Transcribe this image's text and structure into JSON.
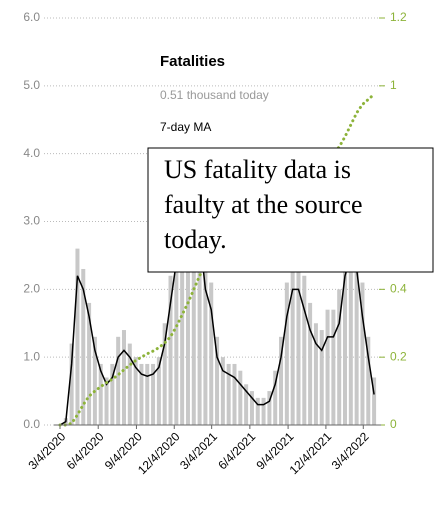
{
  "chart_data": {
    "type": "bar-line",
    "legend_title": "Fatalities",
    "legend_subtitle": "0.51 thousand today",
    "legend_line": "7-day MA",
    "annotation": [
      "US fatality data is",
      "faulty at the source",
      "today."
    ],
    "x": [
      "3/4/2020",
      "3/18/2020",
      "4/1/2020",
      "4/15/2020",
      "4/29/2020",
      "5/13/2020",
      "5/27/2020",
      "6/10/2020",
      "6/24/2020",
      "7/8/2020",
      "7/22/2020",
      "8/5/2020",
      "8/19/2020",
      "9/2/2020",
      "9/16/2020",
      "9/30/2020",
      "10/14/2020",
      "10/28/2020",
      "11/11/2020",
      "11/25/2020",
      "12/9/2020",
      "12/23/2020",
      "1/6/2021",
      "1/20/2021",
      "2/3/2021",
      "2/17/2021",
      "3/3/2021",
      "3/17/2021",
      "3/31/2021",
      "4/14/2021",
      "4/28/2021",
      "5/12/2021",
      "5/26/2021",
      "6/9/2021",
      "6/23/2021",
      "7/7/2021",
      "7/21/2021",
      "8/4/2021",
      "8/18/2021",
      "9/1/2021",
      "9/15/2021",
      "9/29/2021",
      "10/13/2021",
      "10/27/2021",
      "11/10/2021",
      "11/24/2021",
      "12/8/2021",
      "12/22/2021",
      "1/5/2022",
      "1/19/2022",
      "2/2/2022",
      "2/16/2022",
      "3/2/2022",
      "3/16/2022",
      "3/30/2022"
    ],
    "series": [
      {
        "name": "Fatalities",
        "color": "#c8c8c8",
        "kind": "bar",
        "values": [
          0,
          0.1,
          1.2,
          2.6,
          2.3,
          1.8,
          1.3,
          0.9,
          0.7,
          0.9,
          1.3,
          1.4,
          1.2,
          1.0,
          0.9,
          0.9,
          0.9,
          1.0,
          1.5,
          2.2,
          2.9,
          3.3,
          3.8,
          3.9,
          3.4,
          2.6,
          2.1,
          1.3,
          1.0,
          0.9,
          0.9,
          0.8,
          0.6,
          0.5,
          0.4,
          0.4,
          0.5,
          0.8,
          1.3,
          2.1,
          2.7,
          2.6,
          2.2,
          1.8,
          1.5,
          1.4,
          1.7,
          1.7,
          2.0,
          2.8,
          3.3,
          3.0,
          2.1,
          1.3,
          0.7
        ]
      },
      {
        "name": "7-day MA",
        "color": "#000000",
        "kind": "line",
        "values": [
          0,
          0.05,
          0.9,
          2.2,
          2.0,
          1.6,
          1.1,
          0.8,
          0.6,
          0.7,
          1.0,
          1.1,
          1.0,
          0.85,
          0.75,
          0.72,
          0.75,
          0.85,
          1.2,
          1.8,
          2.4,
          2.7,
          3.0,
          3.1,
          2.8,
          2.0,
          1.7,
          1.0,
          0.8,
          0.75,
          0.7,
          0.6,
          0.5,
          0.4,
          0.3,
          0.3,
          0.35,
          0.6,
          1.0,
          1.6,
          2.0,
          2.0,
          1.7,
          1.4,
          1.2,
          1.1,
          1.3,
          1.3,
          1.5,
          2.2,
          2.5,
          2.3,
          1.6,
          1.0,
          0.45
        ]
      },
      {
        "name": "Cumulative",
        "color": "#8db33a",
        "kind": "dotted",
        "axis": "y2",
        "values": [
          0,
          0,
          0.005,
          0.03,
          0.06,
          0.085,
          0.1,
          0.113,
          0.125,
          0.135,
          0.148,
          0.163,
          0.177,
          0.19,
          0.2,
          0.21,
          0.218,
          0.228,
          0.242,
          0.26,
          0.29,
          0.325,
          0.36,
          0.4,
          0.44,
          0.47,
          0.5,
          0.52,
          0.54,
          0.555,
          0.57,
          0.58,
          0.59,
          0.597,
          0.602,
          0.606,
          0.61,
          0.615,
          0.625,
          0.64,
          0.665,
          0.69,
          0.72,
          0.74,
          0.755,
          0.77,
          0.785,
          0.8,
          0.82,
          0.85,
          0.885,
          0.92,
          0.945,
          0.96,
          0.975
        ]
      }
    ],
    "xlim": [
      "3/4/2020",
      "4/6/2022"
    ],
    "xticks": [
      "3/4/2020",
      "6/4/2020",
      "9/4/2020",
      "12/4/2020",
      "3/4/2021",
      "6/4/2021",
      "9/4/2021",
      "12/4/2021",
      "3/4/2022"
    ],
    "ylim": [
      0,
      6
    ],
    "yticks": [
      {
        "value": 0,
        "label": "0.0"
      },
      {
        "value": 1,
        "label": "1.0"
      },
      {
        "value": 2,
        "label": "2.0"
      },
      {
        "value": 3,
        "label": "3.0"
      },
      {
        "value": 4,
        "label": "4.0"
      },
      {
        "value": 5,
        "label": "5.0"
      },
      {
        "value": 6,
        "label": "6.0"
      }
    ],
    "y2lim": [
      0,
      1.2
    ],
    "y2ticks": [
      0,
      0.2,
      0.4,
      0.6,
      0.8,
      1,
      1.2
    ],
    "y2color": "#8db33a",
    "grid": true
  }
}
